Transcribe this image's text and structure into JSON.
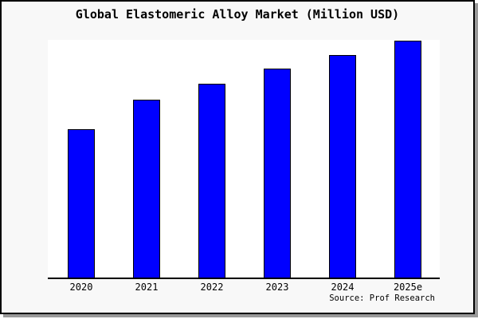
{
  "title": "Global Elastomeric Alloy Market (Million USD)",
  "source_note": "Source: Prof Research",
  "colors": {
    "bar": "#0000ff",
    "bar_border": "#000000",
    "window_bg": "#f8f8f8",
    "plot_bg": "#ffffff",
    "frame": "#000000",
    "shadow": "#999999",
    "text": "#000000"
  },
  "chart_data": {
    "type": "bar",
    "title": "Global Elastomeric Alloy Market (Million USD)",
    "categories": [
      "2020",
      "2021",
      "2022",
      "2023",
      "2024",
      "2025e"
    ],
    "values": [
      186,
      223,
      243,
      262,
      279,
      297
    ],
    "xlabel": "",
    "ylabel": "",
    "ylim": [
      0,
      298
    ],
    "grid": false,
    "legend": false,
    "y_axis_visible": false,
    "x_axis_visible": true,
    "bar_color": "#0000ff",
    "source": "Source: Prof Research"
  }
}
